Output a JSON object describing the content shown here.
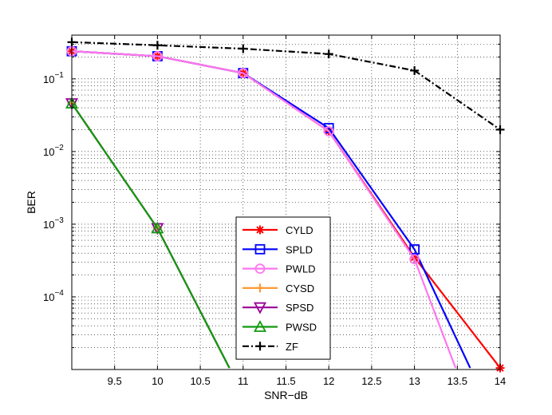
{
  "chart_data": {
    "type": "line",
    "title": "",
    "xlabel": "SNR−dB",
    "ylabel": "BER",
    "xlim": [
      9,
      14
    ],
    "ylim": [
      1e-05,
      0.4
    ],
    "yscale": "log",
    "grid": true,
    "legend_position": "bottom-center",
    "x_ticks": [
      9.5,
      10,
      10.5,
      11,
      11.5,
      12,
      12.5,
      13,
      13.5,
      14
    ],
    "x_tick_labels": [
      "9.5",
      "10",
      "10.5",
      "11",
      "11.5",
      "12",
      "12.5",
      "13",
      "13.5",
      "14"
    ],
    "y_ticks": [
      {
        "value": 0.1,
        "base": "10",
        "exp": "−1"
      },
      {
        "value": 0.01,
        "base": "10",
        "exp": "−2"
      },
      {
        "value": 0.001,
        "base": "10",
        "exp": "−3"
      },
      {
        "value": 0.0001,
        "base": "10",
        "exp": "−4"
      }
    ],
    "series": [
      {
        "name": "CYLD",
        "color": "#ff0000",
        "marker": "asterisk",
        "dash": "",
        "x": [
          9,
          10,
          11,
          12,
          13,
          14
        ],
        "y": [
          0.24,
          0.205,
          0.12,
          0.019,
          0.00035,
          1.05e-05
        ]
      },
      {
        "name": "SPLD",
        "color": "#0000ff",
        "marker": "square",
        "dash": "",
        "x": [
          9,
          10,
          11,
          12,
          13,
          13.65
        ],
        "y": [
          0.24,
          0.205,
          0.12,
          0.021,
          0.00045,
          1.05e-05
        ]
      },
      {
        "name": "PWLD",
        "color": "#ff77ee",
        "marker": "circle",
        "dash": "",
        "x": [
          9,
          10,
          11,
          12,
          13,
          13.48
        ],
        "y": [
          0.24,
          0.205,
          0.12,
          0.019,
          0.00033,
          1.05e-05
        ]
      },
      {
        "name": "CYSD",
        "color": "#ff9933",
        "marker": "plus",
        "dash": "",
        "x": [
          9,
          10,
          10.84
        ],
        "y": [
          0.046,
          0.00088,
          1.05e-05
        ]
      },
      {
        "name": "SPSD",
        "color": "#990099",
        "marker": "triangle-down",
        "dash": "",
        "x": [
          9,
          10,
          10.84
        ],
        "y": [
          0.046,
          0.00088,
          1.05e-05
        ]
      },
      {
        "name": "PWSD",
        "color": "#119911",
        "marker": "triangle-up",
        "dash": "",
        "x": [
          9,
          10,
          10.84
        ],
        "y": [
          0.046,
          0.00088,
          1.05e-05
        ]
      },
      {
        "name": "ZF",
        "color": "#000000",
        "marker": "plus",
        "dash": "8,3,2,3",
        "x": [
          9,
          10,
          11,
          12,
          13,
          14
        ],
        "y": [
          0.32,
          0.29,
          0.26,
          0.22,
          0.13,
          0.02
        ]
      }
    ]
  }
}
